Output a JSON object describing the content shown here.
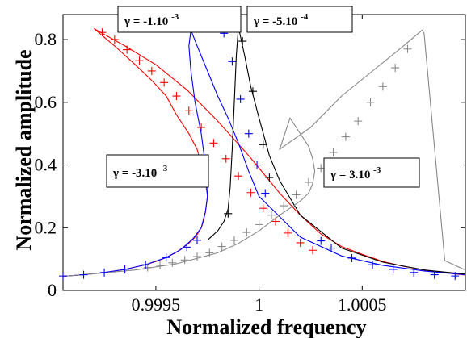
{
  "chart_data": {
    "type": "line",
    "title": "",
    "xlabel": "Normalized frequency",
    "ylabel": "Normalized amplitude",
    "xlim": [
      0.99905,
      1.001
    ],
    "ylim": [
      0,
      0.88
    ],
    "x_ticks": [
      0.9995,
      1,
      1.0005
    ],
    "x_tick_labels": [
      "0.9995",
      "1",
      "1.0005"
    ],
    "y_ticks": [
      0,
      0.2,
      0.4,
      0.6,
      0.8
    ],
    "y_tick_labels": [
      "0",
      "0.2",
      "0.4",
      "0.6",
      "0.8"
    ],
    "grid": false,
    "legend": "none",
    "colors": {
      "red": "#ff0000",
      "blue": "#0000ff",
      "black": "#000000",
      "gray": "#888888"
    },
    "annotations": [
      {
        "text_base": "γ = -1.10",
        "text_exp": "-3",
        "color_series": "blue"
      },
      {
        "text_base": "γ = -5.10",
        "text_exp": "-4",
        "color_series": "black"
      },
      {
        "text_base": "γ = -3.10",
        "text_exp": "-3",
        "color_series": "red"
      },
      {
        "text_base": "γ = 3.10",
        "text_exp": "-3",
        "color_series": "gray"
      }
    ],
    "series": [
      {
        "color": "#ff0000",
        "gamma": -0.003,
        "curve_x": [
          0.99905,
          0.99915,
          0.99925,
          0.99935,
          0.99945,
          0.9995,
          0.99955,
          0.9996,
          0.99965,
          0.99968,
          0.9997,
          0.99972,
          0.99973,
          0.99974,
          0.99975,
          0.99974,
          0.99972,
          0.9997,
          0.99966,
          0.9996,
          0.99955,
          0.99948,
          0.9994,
          0.9993,
          0.9992,
          0.99935,
          0.9995,
          0.99965,
          0.9998,
          0.99995,
          1.0,
          1.0001,
          1.0002,
          1.0003,
          1.0004,
          1.0005,
          1.0006,
          1.0007,
          1.0008,
          1.0009,
          1.001
        ],
        "curve_y": [
          0.045,
          0.05,
          0.057,
          0.067,
          0.082,
          0.092,
          0.105,
          0.122,
          0.145,
          0.163,
          0.178,
          0.2,
          0.22,
          0.25,
          0.3,
          0.35,
          0.4,
          0.45,
          0.5,
          0.56,
          0.62,
          0.67,
          0.72,
          0.78,
          0.835,
          0.78,
          0.72,
          0.64,
          0.54,
          0.43,
          0.39,
          0.31,
          0.24,
          0.18,
          0.14,
          0.115,
          0.092,
          0.077,
          0.065,
          0.056,
          0.049
        ],
        "markers_x": [
          0.99924,
          0.9993,
          0.99936,
          0.99942,
          0.99948,
          0.99954,
          0.9996,
          0.99966,
          0.99972,
          0.99978,
          0.99984,
          0.9999,
          0.99996,
          1.00002,
          1.00008,
          1.00014,
          1.0002,
          1.00026
        ],
        "markers_y": [
          0.823,
          0.8,
          0.768,
          0.733,
          0.7,
          0.663,
          0.62,
          0.573,
          0.52,
          0.47,
          0.42,
          0.365,
          0.312,
          0.262,
          0.22,
          0.183,
          0.152,
          0.128
        ]
      },
      {
        "color": "#0000ff",
        "gamma": -0.001,
        "curve_x": [
          0.99905,
          0.99915,
          0.99925,
          0.99935,
          0.99945,
          0.99955,
          0.99962,
          0.99968,
          0.99972,
          0.99974,
          0.99975,
          0.99974,
          0.99972,
          0.99969,
          0.99967,
          0.99966,
          0.99967,
          0.9997,
          0.99975,
          0.9998,
          0.99985,
          0.9999,
          0.99995,
          1.0,
          1.0002,
          1.0004,
          1.0006,
          1.0008,
          1.001
        ],
        "curve_y": [
          0.045,
          0.05,
          0.057,
          0.067,
          0.082,
          0.105,
          0.13,
          0.165,
          0.2,
          0.25,
          0.3,
          0.4,
          0.5,
          0.6,
          0.7,
          0.78,
          0.83,
          0.78,
          0.7,
          0.62,
          0.55,
          0.47,
          0.38,
          0.3,
          0.17,
          0.11,
          0.08,
          0.062,
          0.05
        ],
        "markers_x": [
          0.99983,
          0.99987,
          0.99991,
          0.99995,
          0.99999,
          1.00003
        ],
        "markers_y": [
          0.82,
          0.73,
          0.61,
          0.5,
          0.4,
          0.31
        ]
      },
      {
        "color": "#000000",
        "gamma": -0.0005,
        "curve_x": [
          0.99975,
          0.9998,
          0.99983,
          0.99985,
          0.99986,
          0.99987,
          0.99988,
          0.99989,
          0.9999,
          0.99993,
          0.99996,
          1.0,
          1.00005,
          1.0001,
          1.0002,
          1.0004,
          1.0006,
          1.0008,
          1.001
        ],
        "curve_y": [
          0.16,
          0.19,
          0.22,
          0.26,
          0.33,
          0.45,
          0.6,
          0.75,
          0.84,
          0.75,
          0.65,
          0.55,
          0.43,
          0.35,
          0.24,
          0.135,
          0.09,
          0.065,
          0.052
        ],
        "markers_x": [
          0.99985,
          0.99992,
          0.99997,
          1.00002,
          1.00005
        ],
        "markers_y": [
          0.245,
          0.795,
          0.635,
          0.465,
          0.36
        ]
      },
      {
        "color": "#888888",
        "gamma": 0.003,
        "curve_x": [
          0.99905,
          0.9992,
          0.9994,
          0.9996,
          0.9998,
          0.9999,
          1.0,
          1.0001,
          1.0002,
          1.00024,
          1.00026,
          1.00027,
          1.00026,
          1.00024,
          1.0002,
          1.00015,
          1.0001,
          1.00025,
          1.0004,
          1.00055,
          1.0007,
          1.00079,
          1.0008,
          1.0009,
          1.001
        ],
        "curve_y": [
          0.045,
          0.053,
          0.065,
          0.085,
          0.12,
          0.15,
          0.19,
          0.24,
          0.285,
          0.31,
          0.34,
          0.38,
          0.42,
          0.46,
          0.5,
          0.55,
          0.45,
          0.52,
          0.62,
          0.7,
          0.78,
          0.83,
          0.82,
          0.095,
          0.065
        ],
        "markers_x": [
          0.99946,
          0.99952,
          0.99958,
          0.99964,
          0.9997,
          0.99976,
          0.99982,
          0.99988,
          0.99994,
          1.0,
          1.00006,
          1.00012,
          1.00018,
          1.00024,
          1.0003,
          1.00036,
          1.00042,
          1.00048,
          1.00054,
          1.0006,
          1.00066,
          1.00072
        ],
        "markers_y": [
          0.073,
          0.08,
          0.088,
          0.097,
          0.108,
          0.12,
          0.14,
          0.16,
          0.185,
          0.21,
          0.24,
          0.27,
          0.305,
          0.345,
          0.39,
          0.44,
          0.49,
          0.54,
          0.6,
          0.65,
          0.71,
          0.77
        ]
      },
      {
        "color": "#0000ff",
        "gamma": 0,
        "curve_x": [],
        "curve_y": [],
        "markers_x": [
          0.99905,
          0.99915,
          0.99925,
          0.99935,
          0.99945,
          0.99955,
          0.99965,
          0.9997,
          1.0003,
          1.00035,
          1.00045,
          1.00055,
          1.00065,
          1.00075,
          1.00085,
          1.00095
        ],
        "markers_y": [
          0.046,
          0.05,
          0.057,
          0.067,
          0.082,
          0.105,
          0.138,
          0.16,
          0.158,
          0.135,
          0.103,
          0.082,
          0.067,
          0.057,
          0.05,
          0.046
        ]
      }
    ]
  }
}
